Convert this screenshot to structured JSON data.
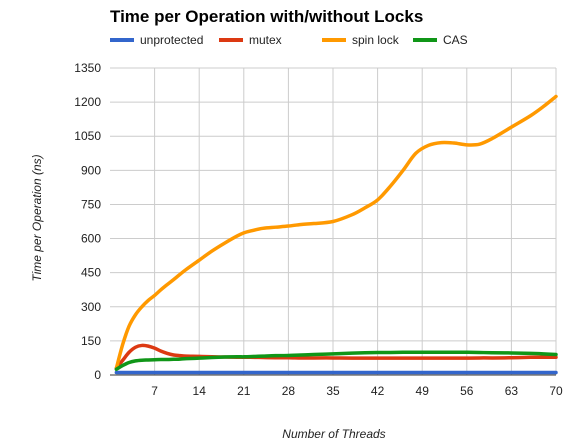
{
  "chart_data": {
    "type": "line",
    "title": "Time per Operation with/without Locks",
    "xlabel": "Number of Threads",
    "ylabel": "Time per Operation (ns)",
    "xlim": [
      0,
      70
    ],
    "ylim": [
      0,
      1350
    ],
    "xticks": [
      7,
      14,
      21,
      28,
      35,
      42,
      49,
      56,
      63,
      70
    ],
    "yticks": [
      0,
      150,
      300,
      450,
      600,
      750,
      900,
      1050,
      1200,
      1350
    ],
    "grid": true,
    "legend_position": "top",
    "x": [
      1,
      2,
      3,
      4,
      5,
      6,
      7,
      8,
      9,
      10,
      11,
      12,
      14,
      16,
      18,
      20,
      21,
      22,
      24,
      26,
      28,
      30,
      32,
      35,
      38,
      40,
      42,
      44,
      46,
      48,
      50,
      52,
      54,
      56,
      58,
      60,
      63,
      66,
      68,
      70
    ],
    "series": [
      {
        "name": "unprotected",
        "color": "#3366cc",
        "values": [
          11,
          11,
          11,
          11,
          11,
          11,
          11,
          11,
          11,
          11,
          11,
          11,
          11,
          11,
          11,
          11,
          11,
          11,
          11,
          11,
          11,
          11,
          11,
          11,
          11,
          11,
          11,
          11,
          11,
          11,
          11,
          11,
          11,
          11,
          11,
          11,
          11,
          11,
          11,
          11
        ]
      },
      {
        "name": "mutex",
        "color": "#dc3912",
        "values": [
          30,
          65,
          100,
          122,
          130,
          127,
          118,
          105,
          95,
          88,
          85,
          83,
          82,
          80,
          79,
          78,
          78,
          78,
          77,
          76,
          76,
          75,
          75,
          75,
          74,
          74,
          74,
          74,
          74,
          74,
          74,
          74,
          74,
          74,
          75,
          75,
          76,
          78,
          78,
          78
        ]
      },
      {
        "name": "spin lock",
        "color": "#ff9900",
        "values": [
          30,
          135,
          215,
          265,
          300,
          328,
          350,
          375,
          398,
          420,
          443,
          465,
          505,
          545,
          580,
          612,
          625,
          633,
          645,
          650,
          655,
          662,
          666,
          675,
          705,
          735,
          770,
          830,
          900,
          975,
          1010,
          1022,
          1020,
          1012,
          1015,
          1040,
          1090,
          1140,
          1180,
          1225
        ]
      },
      {
        "name": "CAS",
        "color": "#109618",
        "values": [
          25,
          42,
          55,
          62,
          65,
          66,
          67,
          68,
          68,
          69,
          70,
          72,
          74,
          77,
          79,
          80,
          80,
          81,
          83,
          85,
          86,
          88,
          90,
          93,
          96,
          98,
          99,
          99,
          100,
          100,
          100,
          100,
          100,
          100,
          99,
          98,
          97,
          95,
          93,
          90
        ]
      }
    ]
  }
}
